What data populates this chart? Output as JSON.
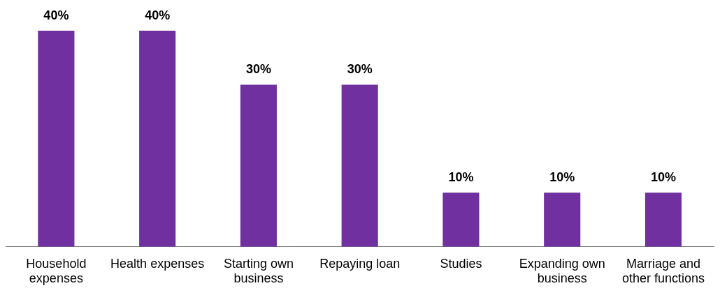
{
  "chart_data": {
    "type": "bar",
    "categories": [
      "Household expenses",
      "Health expenses",
      "Starting own business",
      "Repaying loan",
      "Studies",
      "Expanding own business",
      "Marriage and other functions"
    ],
    "values": [
      40,
      40,
      30,
      30,
      10,
      10,
      10
    ],
    "value_labels": [
      "40%",
      "40%",
      "30%",
      "30%",
      "10%",
      "10%",
      "10%"
    ],
    "color": "#7030a0",
    "grid": false,
    "legend": false
  }
}
